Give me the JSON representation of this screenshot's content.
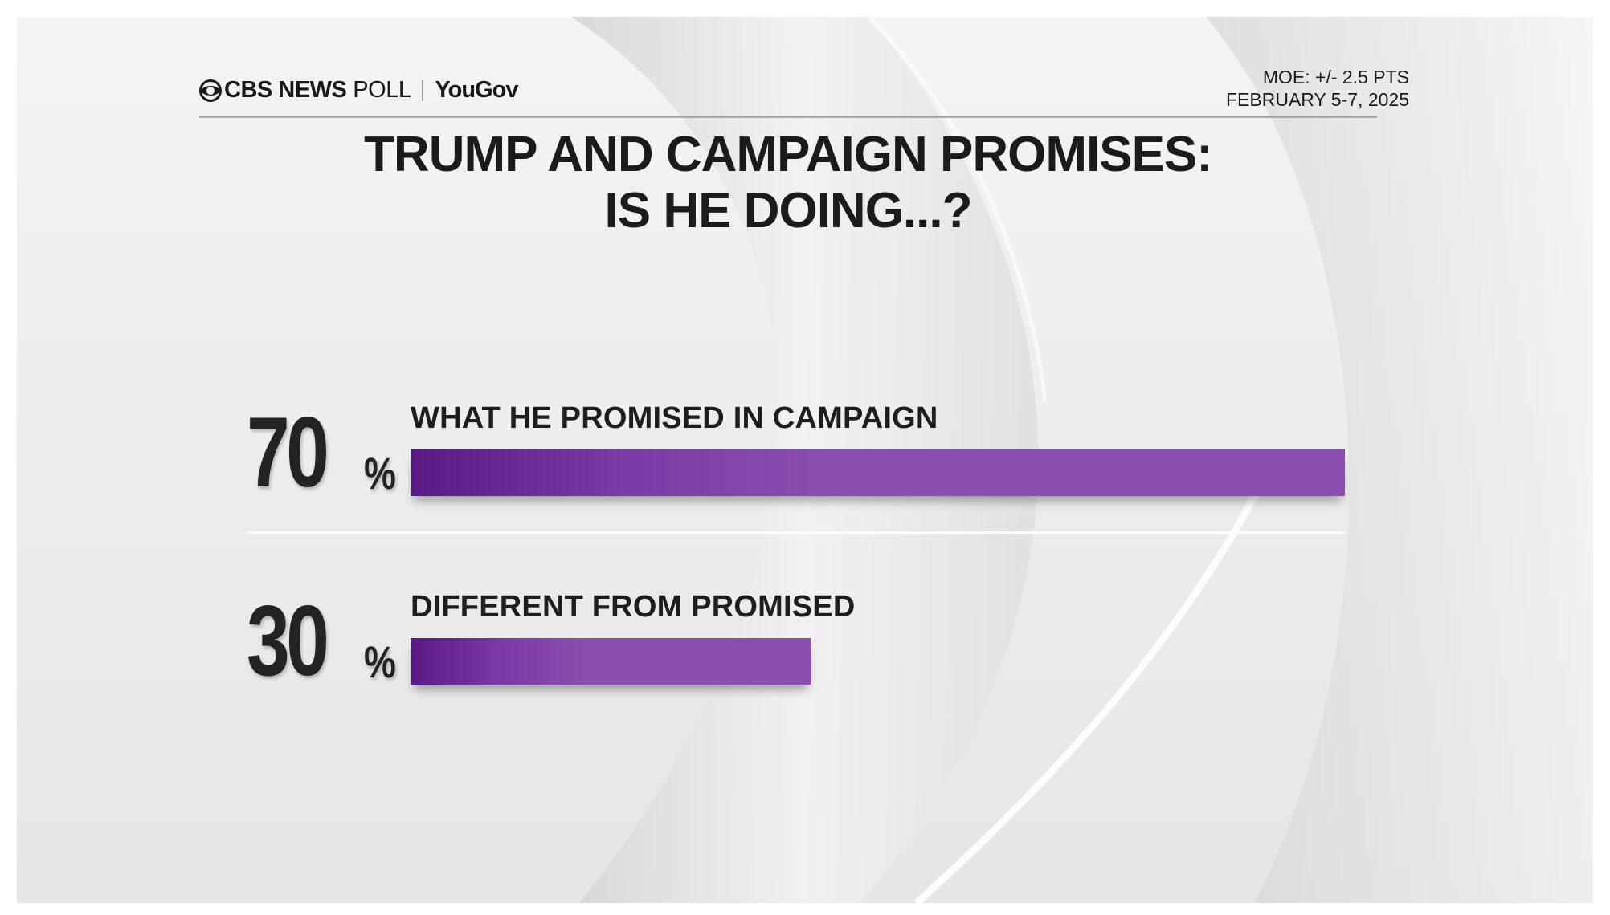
{
  "header": {
    "brand": "CBS NEWS",
    "brand_suffix": "POLL",
    "partner": "YouGov",
    "moe": "MOE: +/- 2.5 PTS",
    "date": "FEBRUARY 5-7, 2025"
  },
  "colors": {
    "bar": "#8a4fae",
    "bar_dark": "#5a1a86",
    "text": "#1b1b1b"
  },
  "chart_data": {
    "type": "bar",
    "orientation": "horizontal",
    "title_lines": [
      "TRUMP AND CAMPAIGN PROMISES:",
      "IS HE DOING...?"
    ],
    "categories": [
      "WHAT HE PROMISED IN CAMPAIGN",
      "DIFFERENT FROM PROMISED"
    ],
    "values": [
      70,
      30
    ],
    "value_labels": [
      "70",
      "30"
    ],
    "unit": "%",
    "xlim": [
      0,
      100
    ],
    "grid": false,
    "legend": "none"
  }
}
